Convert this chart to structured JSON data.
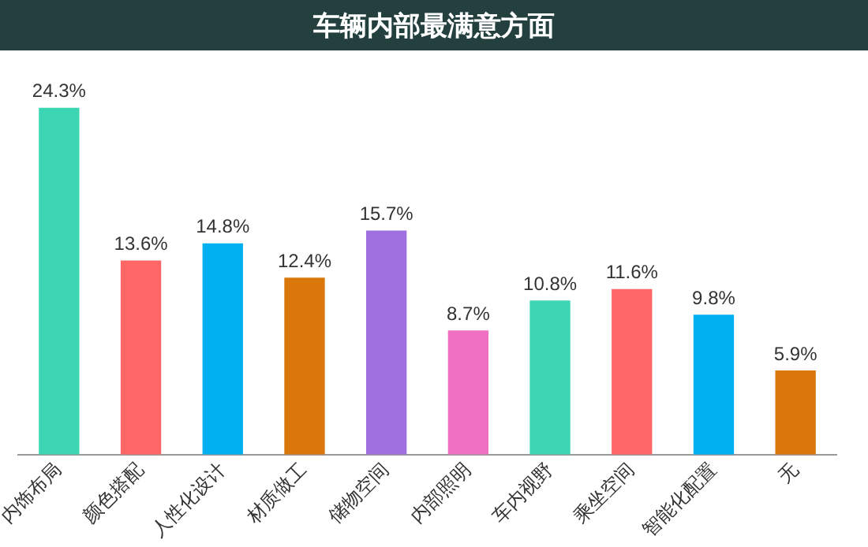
{
  "chart_data": {
    "type": "bar",
    "title": "车辆内部最满意方面",
    "categories": [
      "内饰布局",
      "颜色搭配",
      "人性化设计",
      "材质做工",
      "储物空间",
      "内部照明",
      "车内视野",
      "乘坐空间",
      "智能化配置",
      "无"
    ],
    "values": [
      24.3,
      13.6,
      14.8,
      12.4,
      15.7,
      8.7,
      10.8,
      11.6,
      9.8,
      5.9
    ],
    "value_labels": [
      "24.3%",
      "13.6%",
      "14.8%",
      "12.4%",
      "15.7%",
      "8.7%",
      "10.8%",
      "11.6%",
      "9.8%",
      "5.9%"
    ],
    "colors": [
      "#3dd6b5",
      "#ff6666",
      "#00b0f0",
      "#d9770b",
      "#a070e0",
      "#ef70c0",
      "#3dd6b5",
      "#ff6666",
      "#00b0f0",
      "#d9770b"
    ],
    "grid": false,
    "legend": false
  }
}
